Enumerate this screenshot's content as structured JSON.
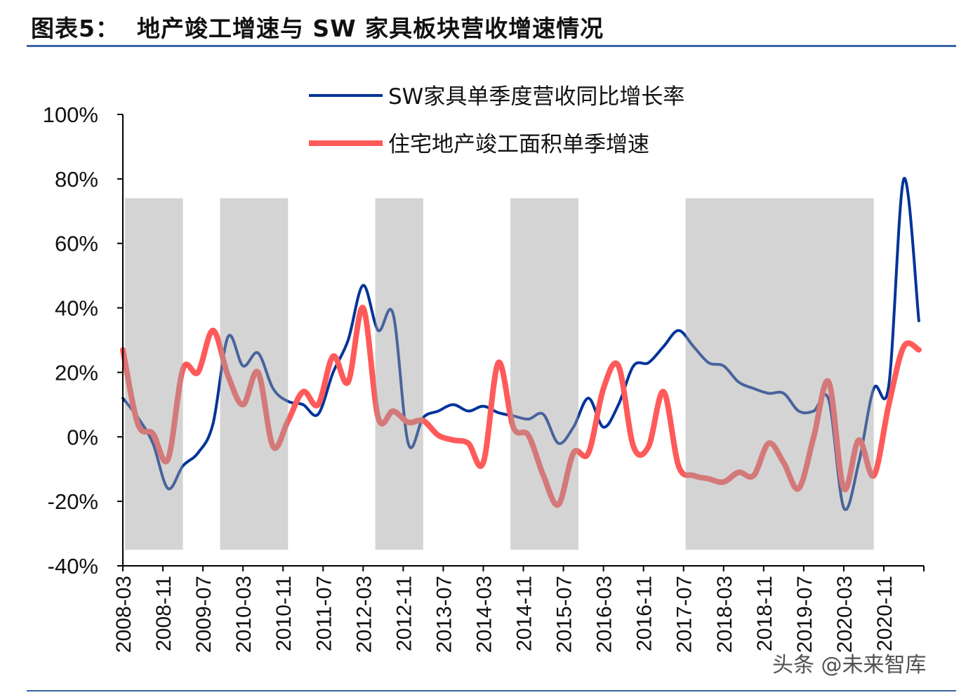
{
  "header": {
    "title": "图表5：  地产竣工增速与 SW 家具板块营收增速情况"
  },
  "watermark": "头条 @未来智库",
  "colors": {
    "blue": "#003399",
    "red": "#ff5a5a",
    "shade": "#a0a0a0",
    "rule": "#3a63a8"
  },
  "chart_data": {
    "type": "line",
    "title": "",
    "xlabel": "",
    "ylabel": "",
    "ylim": [
      -40,
      100
    ],
    "yticks": [
      "-40%",
      "-20%",
      "0%",
      "20%",
      "40%",
      "60%",
      "80%",
      "100%"
    ],
    "ytick_values": [
      -40,
      -20,
      0,
      20,
      40,
      60,
      80,
      100
    ],
    "xticks": [
      "2008-03",
      "2008-11",
      "2009-07",
      "2010-03",
      "2010-11",
      "2011-07",
      "2012-03",
      "2012-11",
      "2013-07",
      "2014-03",
      "2014-11",
      "2015-07",
      "2016-03",
      "2016-11",
      "2017-07",
      "2018-03",
      "2018-11",
      "2019-07",
      "2020-03",
      "2020-11"
    ],
    "xlim": [
      "2008-03",
      "2021-07"
    ],
    "legend_placement": "top",
    "grid": false,
    "x": [
      "2008-03",
      "2008-06",
      "2008-09",
      "2008-12",
      "2009-03",
      "2009-06",
      "2009-09",
      "2009-12",
      "2010-03",
      "2010-06",
      "2010-09",
      "2010-12",
      "2011-03",
      "2011-06",
      "2011-09",
      "2011-12",
      "2012-03",
      "2012-06",
      "2012-09",
      "2012-12",
      "2013-03",
      "2013-06",
      "2013-09",
      "2013-12",
      "2014-03",
      "2014-06",
      "2014-09",
      "2014-12",
      "2015-03",
      "2015-06",
      "2015-09",
      "2015-12",
      "2016-03",
      "2016-06",
      "2016-09",
      "2016-12",
      "2017-03",
      "2017-06",
      "2017-09",
      "2017-12",
      "2018-03",
      "2018-06",
      "2018-09",
      "2018-12",
      "2019-03",
      "2019-06",
      "2019-09",
      "2019-12",
      "2020-03",
      "2020-06",
      "2020-09",
      "2020-12",
      "2021-03",
      "2021-06"
    ],
    "series": [
      {
        "name": "SW家具单季度营收同比增长率",
        "color": "#003399",
        "values": [
          12,
          6,
          -2,
          -16,
          -9,
          -5,
          4,
          31,
          22,
          26,
          15,
          11,
          10,
          7,
          20,
          30,
          47,
          33,
          38,
          -2,
          6,
          8,
          10,
          8,
          9.5,
          7.5,
          6.5,
          5.5,
          7,
          -2,
          3,
          12,
          3,
          10,
          22,
          23,
          28,
          33,
          28,
          23,
          22,
          17,
          15,
          13.5,
          13.5,
          8,
          8,
          11.5,
          -22,
          -8,
          15,
          16,
          80,
          36
        ]
      },
      {
        "name": "住宅地产竣工面积单季增速",
        "color": "#ff5a5a",
        "values": [
          27,
          4,
          1,
          -7,
          21,
          20,
          33,
          19,
          10,
          20,
          -3,
          5,
          14,
          10,
          25,
          17,
          40,
          6,
          8,
          4.5,
          5,
          0.5,
          -1,
          -2,
          -8,
          23,
          3,
          0.5,
          -12,
          -21,
          -5,
          -5,
          15,
          22,
          -3,
          -3,
          14,
          -9,
          -12,
          -13,
          -14,
          -11,
          -12,
          -2,
          -8,
          -16,
          0,
          17,
          -16,
          -1,
          -12,
          10,
          28,
          27
        ]
      }
    ],
    "shaded_periods": [
      {
        "start": "2008-03",
        "end": "2009-03"
      },
      {
        "start": "2009-10",
        "end": "2010-12"
      },
      {
        "start": "2012-05",
        "end": "2013-03"
      },
      {
        "start": "2014-08",
        "end": "2015-10"
      },
      {
        "start": "2017-07",
        "end": "2020-09"
      }
    ],
    "shade_range": [
      -35,
      74
    ]
  }
}
